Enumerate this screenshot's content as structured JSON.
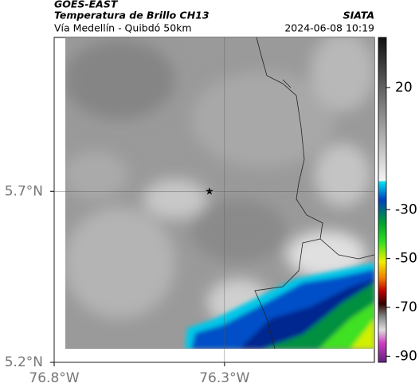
{
  "header": {
    "satellite": "GOES-EAST",
    "product": "Temperatura de Brillo CH13",
    "source": "SIATA",
    "region": "Vía Medellín - Quibdó 50km",
    "timestamp": "2024-06-08 10:19"
  },
  "map": {
    "xlim": [
      -76.8,
      -75.86
    ],
    "ylim": [
      5.2,
      6.15
    ],
    "xticks": [
      {
        "value": -76.8,
        "label": "76.8°W"
      },
      {
        "value": -76.3,
        "label": "76.3°W"
      }
    ],
    "yticks": [
      {
        "value": 5.7,
        "label": "5.7°N"
      },
      {
        "value": 5.2,
        "label": "5.2°N"
      }
    ]
  },
  "colorbar": {
    "lim": [
      -92.5,
      40.5
    ],
    "ticks": [
      20,
      -30,
      -50,
      -70,
      -90
    ]
  }
}
